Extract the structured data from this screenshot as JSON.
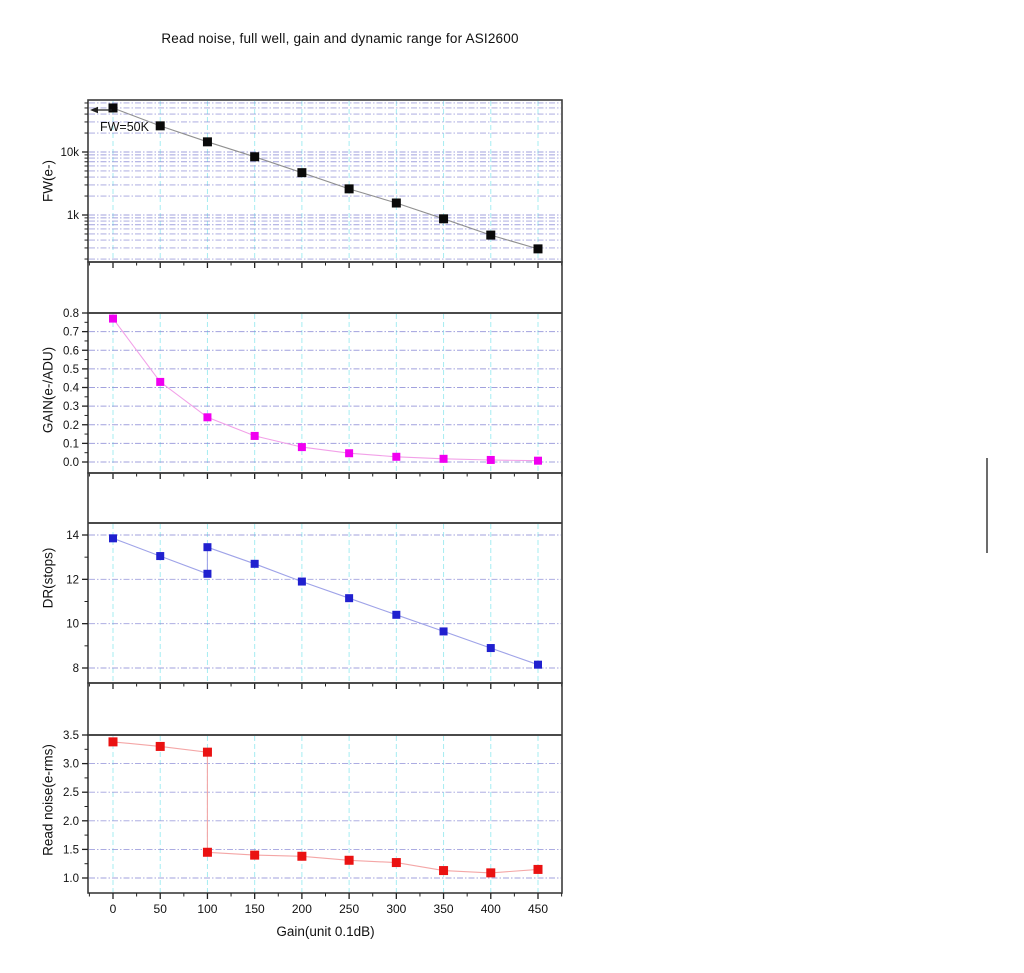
{
  "title": "Read noise, full well, gain and dynamic range for ASI2600",
  "x_axis": {
    "label": "Gain(unit 0.1dB)",
    "tick_labels": [
      "0",
      "50",
      "100",
      "150",
      "200",
      "250",
      "300",
      "350",
      "400",
      "450"
    ],
    "tick_values": [
      0,
      50,
      100,
      150,
      200,
      250,
      300,
      350,
      400,
      450
    ],
    "minor_step": 25,
    "range": [
      -27,
      476
    ]
  },
  "annotation": {
    "text": "FW=50K",
    "points_to": "first full-well data point (gain 0, 50000 e-)"
  },
  "colors": {
    "background": "#ffffff",
    "frame": "#3c3c3c",
    "split_line": "#4a4a4a",
    "grid_horizontal": "#8a8ad6",
    "grid_vertical": "#a5ecf2",
    "tick": "#222222",
    "text": "#111111"
  },
  "chart_data": [
    {
      "type": "line",
      "name": "full-well",
      "ylabel": "FW(e-)",
      "yscale": "log",
      "x": [
        0,
        50,
        100,
        150,
        200,
        250,
        300,
        350,
        400,
        450
      ],
      "y": [
        50000,
        26000,
        14500,
        8400,
        4700,
        2600,
        1550,
        870,
        480,
        290
      ],
      "ylim": [
        180,
        66000
      ],
      "yticks": [
        {
          "v": 1000,
          "label": "1k"
        },
        {
          "v": 10000,
          "label": "10k"
        }
      ],
      "grid": "log-minor-and-major",
      "marker": "square",
      "marker_color": "#0a0a0a",
      "line_color": "#909090",
      "marker_size": 9
    },
    {
      "type": "line",
      "name": "gain",
      "ylabel": "GAIN(e-/ADU)",
      "yscale": "linear",
      "x": [
        0,
        50,
        100,
        150,
        200,
        250,
        300,
        350,
        400,
        450
      ],
      "y": [
        0.77,
        0.43,
        0.24,
        0.14,
        0.08,
        0.047,
        0.028,
        0.017,
        0.011,
        0.007
      ],
      "ylim": [
        0,
        0.8
      ],
      "yticks": [
        {
          "v": 0.0,
          "label": "0.0"
        },
        {
          "v": 0.1,
          "label": "0.1"
        },
        {
          "v": 0.2,
          "label": "0.2"
        },
        {
          "v": 0.3,
          "label": "0.3"
        },
        {
          "v": 0.4,
          "label": "0.4"
        },
        {
          "v": 0.5,
          "label": "0.5"
        },
        {
          "v": 0.6,
          "label": "0.6"
        },
        {
          "v": 0.7,
          "label": "0.7"
        },
        {
          "v": 0.8,
          "label": "0.8"
        }
      ],
      "grid": "major",
      "marker": "square",
      "marker_color": "#f000f0",
      "line_color": "#f2a0e8",
      "marker_size": 8
    },
    {
      "type": "line",
      "name": "dynamic-range",
      "ylabel": "DR(stops)",
      "yscale": "linear",
      "x": [
        0,
        50,
        100,
        100,
        150,
        200,
        250,
        300,
        350,
        400,
        450
      ],
      "y": [
        13.85,
        13.05,
        12.25,
        13.45,
        12.7,
        11.9,
        11.15,
        10.4,
        9.65,
        8.9,
        8.15
      ],
      "ylim": [
        7.3,
        14.5
      ],
      "yticks": [
        {
          "v": 8,
          "label": "8"
        },
        {
          "v": 10,
          "label": "10"
        },
        {
          "v": 12,
          "label": "12"
        },
        {
          "v": 14,
          "label": "14"
        }
      ],
      "grid": "major",
      "marker": "square",
      "marker_color": "#2020cf",
      "line_color": "#9fa3e8",
      "marker_size": 8
    },
    {
      "type": "line",
      "name": "read-noise",
      "ylabel": "Read noise(e-rms)",
      "yscale": "linear",
      "x": [
        0,
        50,
        100,
        100,
        150,
        200,
        250,
        300,
        350,
        400,
        450
      ],
      "y": [
        3.38,
        3.3,
        3.2,
        1.45,
        1.4,
        1.38,
        1.31,
        1.27,
        1.13,
        1.09,
        1.15
      ],
      "ylim": [
        0.74,
        3.5
      ],
      "yticks": [
        {
          "v": 1.0,
          "label": "1.0"
        },
        {
          "v": 1.5,
          "label": "1.5"
        },
        {
          "v": 2.0,
          "label": "2.0"
        },
        {
          "v": 2.5,
          "label": "2.5"
        },
        {
          "v": 3.0,
          "label": "3.0"
        },
        {
          "v": 3.5,
          "label": "3.5"
        }
      ],
      "grid": "major",
      "marker": "square",
      "marker_color": "#ea1212",
      "line_color": "#f4a6a6",
      "marker_size": 9
    }
  ]
}
